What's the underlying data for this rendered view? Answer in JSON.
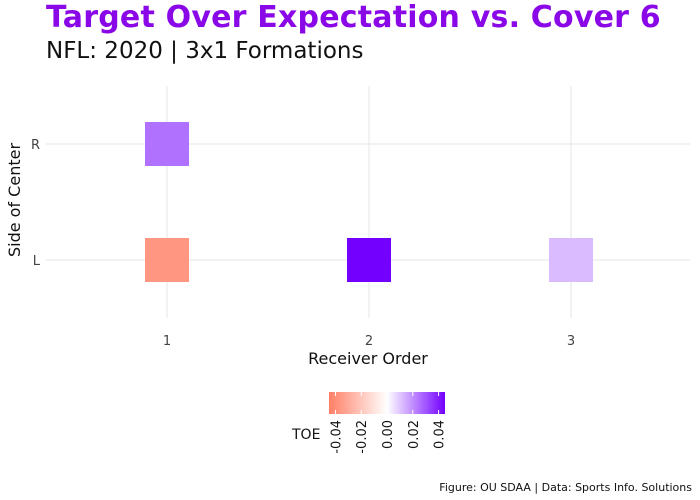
{
  "title": "Target Over Expectation vs. Cover 6",
  "subtitle": "NFL: 2020 | 3x1 Formations",
  "caption": "Figure: OU SDAA | Data: Sports Info. Solutions",
  "colors": {
    "low": "#ff7f66",
    "mid": "#ffffff",
    "high": "#7300ff",
    "title": "#8a07e8"
  },
  "chart_data": {
    "type": "heatmap",
    "xlabel": "Receiver Order",
    "ylabel": "Side of Center",
    "x_categories": [
      "1",
      "2",
      "3"
    ],
    "y_categories": [
      "L",
      "R"
    ],
    "cells": [
      {
        "x": "1",
        "y": "R",
        "value": 0.025
      },
      {
        "x": "1",
        "y": "L",
        "value": -0.037
      },
      {
        "x": "2",
        "y": "L",
        "value": 0.045
      },
      {
        "x": "3",
        "y": "L",
        "value": 0.012
      }
    ],
    "legend": {
      "title": "TOE",
      "range": [
        -0.045,
        0.045
      ],
      "ticks": [
        "-0.04",
        "-0.02",
        "0.00",
        "0.02",
        "0.04"
      ],
      "tick_values": [
        -0.04,
        -0.02,
        0.0,
        0.02,
        0.04
      ]
    },
    "grid": true
  }
}
